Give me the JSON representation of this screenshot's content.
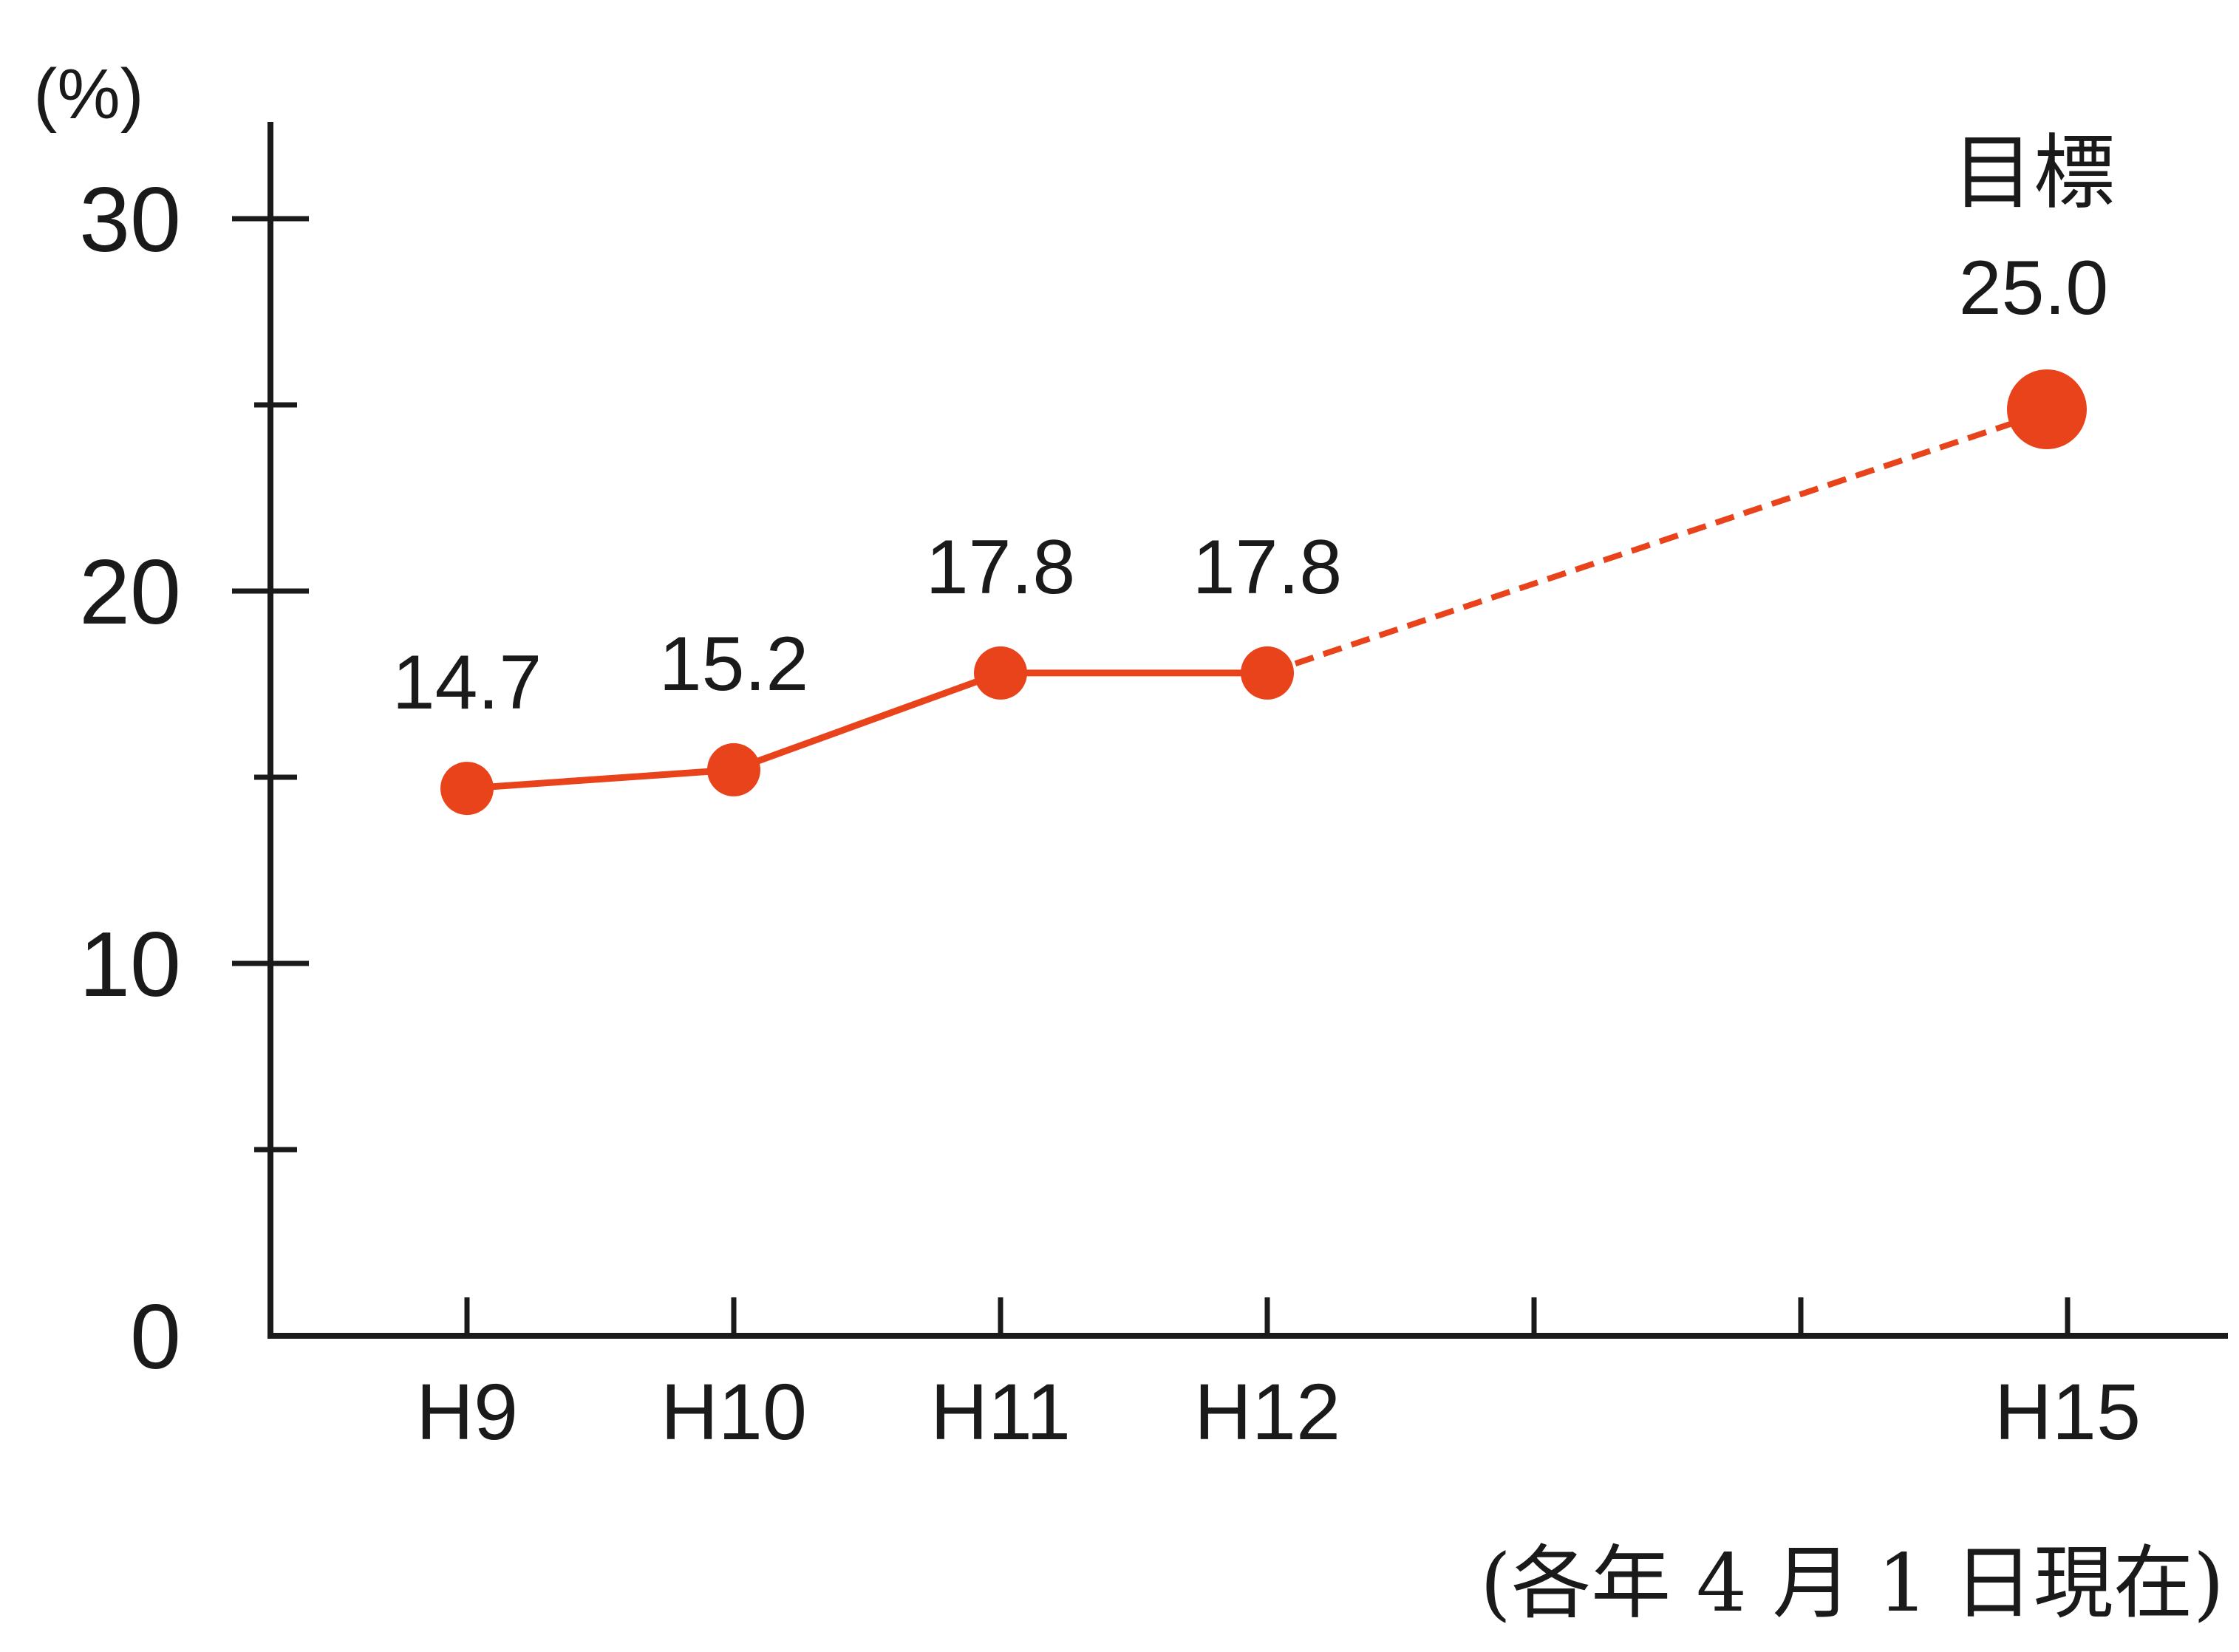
{
  "chart_data": {
    "type": "line",
    "ylabel": "(%)",
    "ylim": [
      0,
      30
    ],
    "yticks_labeled": [
      0,
      10,
      20,
      30
    ],
    "yticks_minor": [
      5,
      15,
      25
    ],
    "x_positions": [
      "H9",
      "H10",
      "H11",
      "H12",
      "H13",
      "H14",
      "H15"
    ],
    "x_tick_labels": [
      "H9",
      "H10",
      "H11",
      "H12",
      "",
      "",
      "H15"
    ],
    "series": [
      {
        "style": "solid",
        "x": [
          "H9",
          "H10",
          "H11",
          "H12"
        ],
        "values": [
          14.7,
          15.2,
          17.8,
          17.8
        ],
        "labels": [
          "14.7",
          "15.2",
          "17.8",
          "17.8"
        ]
      },
      {
        "style": "dashed",
        "x": [
          "H12",
          "H15"
        ],
        "values": [
          17.8,
          25.0
        ]
      }
    ],
    "target": {
      "x": "H15",
      "value": 25.0,
      "caption": "目標",
      "label": "25.0"
    },
    "note": "(各年 4 月 1 日現在)",
    "color": "#e8431a",
    "axis_color": "#1a1a1a",
    "grid": false
  }
}
